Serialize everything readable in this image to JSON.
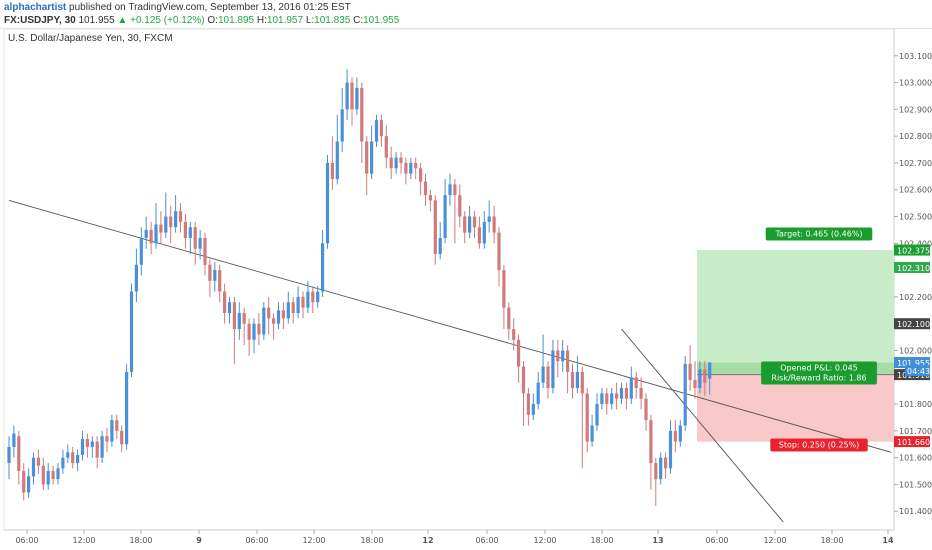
{
  "header": {
    "author": "alphachartist",
    "published_text": "published on TradingView.com, September 13, 2016 01:25 EST",
    "symbol": "FX:USDJPY, 30",
    "last": "101.955",
    "change_arrow": "▲",
    "change": "+0.125 (+0.12%)",
    "o_label": "O:",
    "o_value": "101.895",
    "h_label": "H:",
    "h_value": "101.957",
    "l_label": "L:",
    "l_value": "101.835",
    "c_label": "C:",
    "c_value": "101.955"
  },
  "chart_title": "U.S. Dollar/Japanese Yen, 30, FXCM",
  "colors": {
    "bull": "#4a90d9",
    "bear": "#cf7b7b",
    "target_zone": "#c8ebc8",
    "stop_zone": "#f9c8c8",
    "target_label": "#1a9c2e",
    "stop_label": "#e8222e",
    "last_price": "#3d8fdb",
    "axis_text": "#555555"
  },
  "chart_data": {
    "type": "candlestick",
    "title": "U.S. Dollar/Japanese Yen, 30, FXCM",
    "ylim": [
      101.33,
      103.2
    ],
    "y_ticks": [
      "103.100",
      "103.000",
      "102.900",
      "102.800",
      "102.700",
      "102.600",
      "102.500",
      "102.400",
      "102.200",
      "102.000",
      "101.800",
      "101.700",
      "101.600",
      "101.500",
      "101.400"
    ],
    "x_ticks": [
      "06:00",
      "12:00",
      "18:00",
      "9",
      "06:00",
      "12:00",
      "18:00",
      "12",
      "06:00",
      "12:00",
      "18:00",
      "13",
      "06:00",
      "12:00",
      "18:00",
      "14"
    ],
    "price_labels": {
      "target": "102.375",
      "target_line": "102.310",
      "pivot": "102.100",
      "last": "101.955",
      "countdown": "04:43",
      "entry": "101.910",
      "stop": "101.660"
    },
    "position": {
      "target_text": "Target: 0.465 (0.46%)",
      "pnl_text": "Opened P&L: 0.045",
      "ratio_text": "Risk/Reward Ratio: 1.86",
      "stop_text": "Stop: 0.250 (0.25%)",
      "entry": 101.91,
      "target": 102.375,
      "stop": 101.66,
      "current": 101.955
    },
    "trendlines": [
      {
        "from": [
          0,
          102.56
        ],
        "to": [
          180,
          101.62
        ]
      },
      {
        "from": [
          125,
          102.08
        ],
        "to": [
          158,
          101.36
        ]
      }
    ],
    "candles": [
      [
        101.58,
        101.64,
        101.52,
        101.68
      ],
      [
        101.64,
        101.69,
        101.6,
        101.72
      ],
      [
        101.68,
        101.55,
        101.5,
        101.7
      ],
      [
        101.55,
        101.47,
        101.44,
        101.58
      ],
      [
        101.47,
        101.53,
        101.45,
        101.56
      ],
      [
        101.53,
        101.6,
        101.5,
        101.62
      ],
      [
        101.6,
        101.57,
        101.54,
        101.63
      ],
      [
        101.57,
        101.5,
        101.48,
        101.6
      ],
      [
        101.5,
        101.55,
        101.48,
        101.58
      ],
      [
        101.55,
        101.52,
        101.5,
        101.57
      ],
      [
        101.52,
        101.56,
        101.5,
        101.58
      ],
      [
        101.56,
        101.6,
        101.54,
        101.63
      ],
      [
        101.6,
        101.62,
        101.58,
        101.65
      ],
      [
        101.62,
        101.58,
        101.56,
        101.64
      ],
      [
        101.58,
        101.61,
        101.55,
        101.63
      ],
      [
        101.61,
        101.67,
        101.59,
        101.7
      ],
      [
        101.67,
        101.64,
        101.6,
        101.69
      ],
      [
        101.64,
        101.66,
        101.6,
        101.68
      ],
      [
        101.66,
        101.6,
        101.56,
        101.68
      ],
      [
        101.6,
        101.68,
        101.58,
        101.7
      ],
      [
        101.68,
        101.66,
        101.62,
        101.71
      ],
      [
        101.66,
        101.74,
        101.64,
        101.76
      ],
      [
        101.74,
        101.7,
        101.67,
        101.76
      ],
      [
        101.7,
        101.65,
        101.62,
        101.72
      ],
      [
        101.65,
        101.92,
        101.63,
        101.95
      ],
      [
        101.92,
        102.22,
        101.9,
        102.25
      ],
      [
        102.22,
        102.32,
        102.18,
        102.38
      ],
      [
        102.32,
        102.42,
        102.28,
        102.46
      ],
      [
        102.42,
        102.45,
        102.38,
        102.5
      ],
      [
        102.45,
        102.4,
        102.36,
        102.48
      ],
      [
        102.4,
        102.47,
        102.38,
        102.55
      ],
      [
        102.47,
        102.44,
        102.4,
        102.52
      ],
      [
        102.44,
        102.5,
        102.42,
        102.59
      ],
      [
        102.5,
        102.46,
        102.4,
        102.54
      ],
      [
        102.46,
        102.52,
        102.44,
        102.58
      ],
      [
        102.52,
        102.48,
        102.44,
        102.55
      ],
      [
        102.48,
        102.42,
        102.38,
        102.51
      ],
      [
        102.42,
        102.46,
        102.36,
        102.48
      ],
      [
        102.46,
        102.38,
        102.32,
        102.48
      ],
      [
        102.38,
        102.42,
        102.34,
        102.45
      ],
      [
        102.42,
        102.32,
        102.28,
        102.44
      ],
      [
        102.32,
        102.26,
        102.2,
        102.34
      ],
      [
        102.26,
        102.3,
        102.22,
        102.33
      ],
      [
        102.3,
        102.22,
        102.18,
        102.32
      ],
      [
        102.22,
        102.14,
        102.1,
        102.25
      ],
      [
        102.14,
        102.18,
        102.1,
        102.2
      ],
      [
        102.18,
        102.08,
        101.95,
        102.2
      ],
      [
        102.08,
        102.14,
        102.04,
        102.18
      ],
      [
        102.14,
        102.1,
        102.02,
        102.16
      ],
      [
        102.1,
        102.04,
        101.98,
        102.12
      ],
      [
        102.04,
        102.1,
        101.99,
        102.12
      ],
      [
        102.1,
        102.06,
        102.02,
        102.14
      ],
      [
        102.06,
        102.16,
        102.04,
        102.18
      ],
      [
        102.16,
        102.12,
        102.06,
        102.2
      ],
      [
        102.12,
        102.1,
        102.04,
        102.14
      ],
      [
        102.1,
        102.15,
        102.08,
        102.18
      ],
      [
        102.15,
        102.12,
        102.08,
        102.18
      ],
      [
        102.12,
        102.18,
        102.1,
        102.22
      ],
      [
        102.18,
        102.14,
        102.1,
        102.2
      ],
      [
        102.14,
        102.2,
        102.12,
        102.24
      ],
      [
        102.2,
        102.16,
        102.12,
        102.22
      ],
      [
        102.16,
        102.22,
        102.14,
        102.26
      ],
      [
        102.22,
        102.18,
        102.14,
        102.24
      ],
      [
        102.18,
        102.22,
        102.16,
        102.24
      ],
      [
        102.22,
        102.4,
        102.2,
        102.45
      ],
      [
        102.4,
        102.7,
        102.38,
        102.73
      ],
      [
        102.7,
        102.64,
        102.6,
        102.8
      ],
      [
        102.64,
        102.78,
        102.62,
        102.88
      ],
      [
        102.78,
        102.9,
        102.74,
        102.98
      ],
      [
        102.9,
        103.0,
        102.86,
        103.05
      ],
      [
        103.0,
        102.9,
        102.84,
        103.02
      ],
      [
        102.9,
        102.98,
        102.88,
        103.02
      ],
      [
        102.98,
        102.78,
        102.7,
        103.0
      ],
      [
        102.78,
        102.66,
        102.58,
        102.8
      ],
      [
        102.66,
        102.78,
        102.64,
        102.84
      ],
      [
        102.78,
        102.86,
        102.76,
        102.88
      ],
      [
        102.86,
        102.8,
        102.76,
        102.88
      ],
      [
        102.8,
        102.72,
        102.68,
        102.84
      ],
      [
        102.72,
        102.68,
        102.64,
        102.76
      ],
      [
        102.68,
        102.72,
        102.66,
        102.74
      ],
      [
        102.72,
        102.7,
        102.66,
        102.74
      ],
      [
        102.7,
        102.66,
        102.62,
        102.72
      ],
      [
        102.66,
        102.7,
        102.64,
        102.72
      ],
      [
        102.7,
        102.68,
        102.64,
        102.72
      ],
      [
        102.68,
        102.63,
        102.58,
        102.7
      ],
      [
        102.63,
        102.58,
        102.54,
        102.66
      ],
      [
        102.58,
        102.56,
        102.52,
        102.6
      ],
      [
        102.56,
        102.36,
        102.32,
        102.58
      ],
      [
        102.36,
        102.42,
        102.34,
        102.48
      ],
      [
        102.42,
        102.58,
        102.4,
        102.64
      ],
      [
        102.58,
        102.62,
        102.54,
        102.66
      ],
      [
        102.62,
        102.58,
        102.4,
        102.64
      ],
      [
        102.58,
        102.5,
        102.46,
        102.62
      ],
      [
        102.5,
        102.44,
        102.4,
        102.52
      ],
      [
        102.44,
        102.5,
        102.42,
        102.54
      ],
      [
        102.5,
        102.46,
        102.42,
        102.52
      ],
      [
        102.46,
        102.4,
        102.38,
        102.5
      ],
      [
        102.4,
        102.48,
        102.38,
        102.52
      ],
      [
        102.48,
        102.5,
        102.44,
        102.56
      ],
      [
        102.5,
        102.44,
        102.4,
        102.54
      ],
      [
        102.44,
        102.3,
        102.24,
        102.46
      ],
      [
        102.3,
        102.16,
        102.08,
        102.32
      ],
      [
        102.16,
        102.08,
        102.04,
        102.18
      ],
      [
        102.08,
        102.04,
        102.0,
        102.12
      ],
      [
        102.04,
        101.94,
        101.88,
        102.06
      ],
      [
        101.94,
        101.84,
        101.72,
        101.96
      ],
      [
        101.84,
        101.76,
        101.72,
        101.86
      ],
      [
        101.76,
        101.8,
        101.74,
        101.84
      ],
      [
        101.8,
        101.88,
        101.78,
        101.92
      ],
      [
        101.88,
        101.94,
        101.86,
        102.06
      ],
      [
        101.94,
        101.86,
        101.82,
        101.96
      ],
      [
        101.86,
        102.0,
        101.84,
        102.04
      ],
      [
        102.0,
        101.96,
        101.9,
        102.04
      ],
      [
        101.96,
        102.0,
        101.92,
        102.04
      ],
      [
        102.0,
        101.92,
        101.84,
        102.02
      ],
      [
        101.92,
        101.86,
        101.82,
        101.95
      ],
      [
        101.86,
        101.92,
        101.84,
        101.98
      ],
      [
        101.92,
        101.84,
        101.56,
        101.94
      ],
      [
        101.84,
        101.66,
        101.62,
        101.86
      ],
      [
        101.66,
        101.72,
        101.64,
        101.76
      ],
      [
        101.72,
        101.8,
        101.7,
        101.84
      ],
      [
        101.8,
        101.84,
        101.78,
        101.86
      ],
      [
        101.84,
        101.8,
        101.76,
        101.86
      ],
      [
        101.8,
        101.84,
        101.78,
        101.86
      ],
      [
        101.84,
        101.82,
        101.78,
        101.88
      ],
      [
        101.82,
        101.86,
        101.8,
        101.88
      ],
      [
        101.86,
        101.82,
        101.78,
        101.88
      ],
      [
        101.82,
        101.9,
        101.8,
        101.94
      ],
      [
        101.9,
        101.86,
        101.82,
        101.92
      ],
      [
        101.86,
        101.82,
        101.78,
        101.9
      ],
      [
        101.82,
        101.74,
        101.7,
        101.84
      ],
      [
        101.74,
        101.58,
        101.48,
        101.76
      ],
      [
        101.58,
        101.52,
        101.42,
        101.6
      ],
      [
        101.52,
        101.6,
        101.5,
        101.62
      ],
      [
        101.6,
        101.56,
        101.52,
        101.62
      ],
      [
        101.56,
        101.7,
        101.54,
        101.74
      ],
      [
        101.7,
        101.66,
        101.62,
        101.74
      ],
      [
        101.66,
        101.72,
        101.64,
        101.74
      ],
      [
        101.72,
        101.95,
        101.7,
        101.98
      ],
      [
        101.95,
        101.89,
        101.85,
        102.02
      ],
      [
        101.89,
        101.86,
        101.82,
        101.96
      ],
      [
        101.86,
        101.93,
        101.84,
        101.96
      ],
      [
        101.93,
        101.88,
        101.83,
        101.96
      ],
      [
        101.895,
        101.955,
        101.835,
        101.957
      ]
    ]
  }
}
